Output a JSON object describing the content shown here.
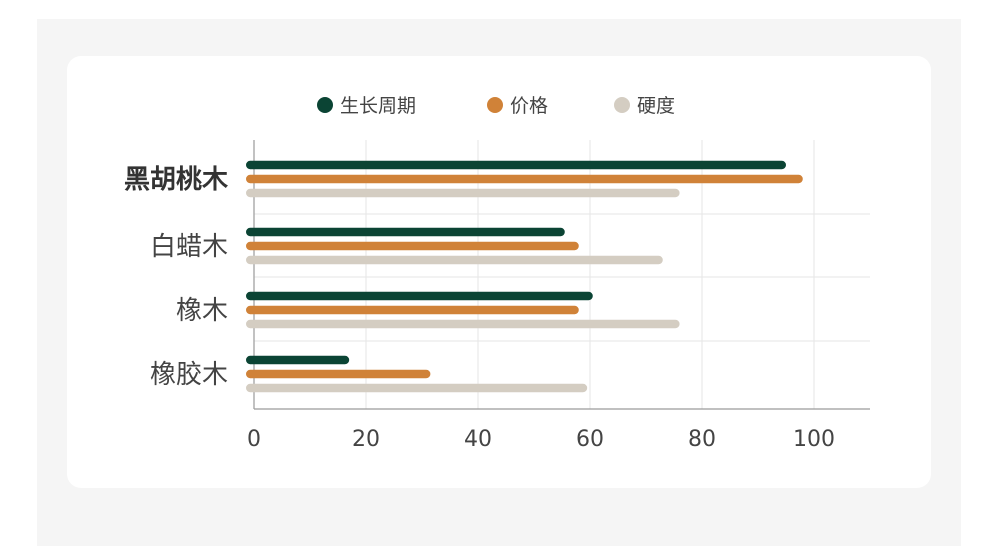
{
  "chart_data": {
    "type": "bar",
    "orientation": "horizontal",
    "categories": [
      "黑胡桃木",
      "白蜡木",
      "橡木",
      "橡胶木"
    ],
    "highlight_category": "黑胡桃木",
    "series": [
      {
        "name": "生长周期",
        "color": "#0b4434",
        "values": [
          95,
          55.5,
          60.5,
          17
        ]
      },
      {
        "name": "价格",
        "color": "#d08238",
        "values": [
          98,
          58,
          58,
          31.5
        ]
      },
      {
        "name": "硬度",
        "color": "#d4cdc2",
        "values": [
          76,
          73,
          76,
          59.5
        ]
      }
    ],
    "xlim": [
      0,
      110
    ],
    "xticks": [
      0,
      20,
      40,
      60,
      80,
      100
    ],
    "grid": true,
    "legend_position": "top"
  }
}
